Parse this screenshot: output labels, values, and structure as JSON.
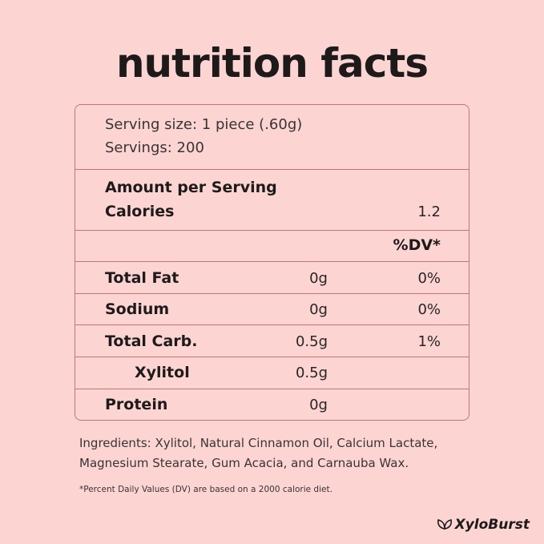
{
  "title": "nutrition facts",
  "serving": {
    "size": "Serving size: 1 piece (.60g)",
    "servings": "Servings: 200"
  },
  "amount": {
    "label": "Amount per Serving",
    "calories_label": "Calories",
    "calories": "1.2"
  },
  "dv_header": "%DV*",
  "rows": [
    {
      "name": "Total Fat",
      "amount": "0g",
      "dv": "0%"
    },
    {
      "name": "Sodium",
      "amount": "0g",
      "dv": "0%"
    },
    {
      "name": "Total Carb.",
      "amount": "0.5g",
      "dv": "1%"
    },
    {
      "name": "Xylitol",
      "amount": "0.5g"
    },
    {
      "name": "Protein",
      "amount": "0g"
    }
  ],
  "ingredients": "Ingredients: Xylitol, Natural Cinnamon Oil, Calcium Lactate, Magnesium Stearate, Gum Acacia, and Carnauba Wax.",
  "footnote": "*Percent Daily Values (DV) are based on a 2000 calorie diet.",
  "brand": "XyloBurst"
}
